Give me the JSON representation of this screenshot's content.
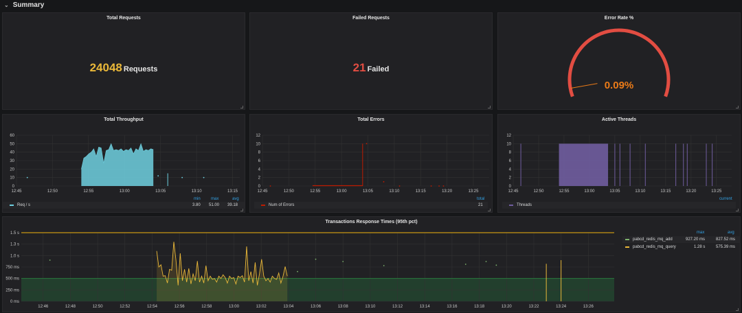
{
  "row": {
    "title": "Summary",
    "chevron_icon": "chevron-down-icon"
  },
  "total_requests": {
    "title": "Total Requests",
    "value": "24048",
    "unit": "Requests",
    "color": "#eab839"
  },
  "failed_requests": {
    "title": "Failed Requests",
    "value": "21",
    "unit": "Failed",
    "color": "#e24d42"
  },
  "error_rate": {
    "title": "Error Rate %",
    "value": "0.09%",
    "percent": 0.09,
    "color": "#eb7b18",
    "arc_color": "#e24d42"
  },
  "chart_data": [
    {
      "id": "throughput",
      "title": "Total Throughput",
      "type": "area",
      "color": "#6ed0e0",
      "xlim": [
        "12:45",
        "13:16"
      ],
      "ylim": [
        0,
        60
      ],
      "x_ticks": [
        "12:45",
        "12:50",
        "12:55",
        "13:00",
        "13:05",
        "13:10",
        "13:15"
      ],
      "y_ticks": [
        "0",
        "10",
        "20",
        "30",
        "40",
        "50",
        "60"
      ],
      "series": [
        {
          "name": "Req / s",
          "area": {
            "x_start": "12:54:00",
            "x_end": "13:04:00",
            "values": [
              20,
              33,
              35,
              38,
              40,
              44,
              35,
              46,
              45,
              27,
              42,
              43,
              50,
              42,
              43,
              42,
              44,
              41,
              43,
              42,
              45,
              38,
              44,
              42,
              50,
              41,
              43,
              42,
              44,
              43
            ]
          },
          "points": [
            [
              "12:46:30",
              10
            ],
            [
              "13:04:40",
              12
            ],
            [
              "13:08:00",
              10
            ],
            [
              "13:11:00",
              10
            ]
          ],
          "spikes": [
            [
              "13:06:00",
              15
            ]
          ]
        }
      ],
      "legend": {
        "headers": [
          "min",
          "max",
          "avg"
        ],
        "values": [
          "3.80",
          "51.00",
          "39.18"
        ]
      }
    },
    {
      "id": "errors",
      "title": "Total Errors",
      "type": "line",
      "color": "#bf1b00",
      "xlim": [
        "12:45",
        "13:28"
      ],
      "ylim": [
        0,
        12
      ],
      "x_ticks": [
        "12:45",
        "12:50",
        "12:55",
        "13:00",
        "13:05",
        "13:10",
        "13:15",
        "13:20",
        "13:25"
      ],
      "y_ticks": [
        "0",
        "2",
        "4",
        "6",
        "8",
        "10",
        "12"
      ],
      "series": [
        {
          "name": "Num of Errors",
          "baseline": [
            "12:54:30",
            "13:04:00"
          ],
          "spikes": [
            [
              "13:04:00",
              10
            ]
          ],
          "points": [
            [
              "12:46:30",
              0
            ],
            [
              "13:04:45",
              10
            ],
            [
              "13:08:00",
              1
            ],
            [
              "13:11:00",
              0
            ],
            [
              "13:17:00",
              0
            ],
            [
              "13:18:30",
              0
            ],
            [
              "13:19:20",
              0
            ]
          ]
        }
      ],
      "legend": {
        "headers": [
          "total"
        ],
        "values": [
          "21"
        ]
      }
    },
    {
      "id": "threads",
      "title": "Active Threads",
      "type": "area",
      "color": "#705da0",
      "xlim": [
        "12:45",
        "13:28"
      ],
      "ylim": [
        0,
        12
      ],
      "x_ticks": [
        "12:45",
        "12:50",
        "12:55",
        "13:00",
        "13:05",
        "13:10",
        "13:15",
        "13:20",
        "13:25"
      ],
      "y_ticks": [
        "0",
        "2",
        "4",
        "6",
        "8",
        "10",
        "12"
      ],
      "series": [
        {
          "name": "Threads",
          "block": [
            "12:54:00",
            "13:03:40",
            10
          ],
          "spikes": [
            [
              "12:46:30",
              10
            ],
            [
              "13:05:00",
              10
            ],
            [
              "13:06:00",
              10
            ],
            [
              "13:08:00",
              10
            ],
            [
              "13:11:00",
              10
            ],
            [
              "13:17:00",
              10
            ],
            [
              "13:18:30",
              10
            ],
            [
              "13:19:15",
              10
            ],
            [
              "13:23:00",
              10
            ],
            [
              "13:24:10",
              10
            ]
          ]
        }
      ],
      "legend": {
        "headers": [
          "current"
        ],
        "values": [
          ""
        ]
      }
    },
    {
      "id": "response",
      "title": "Transactions Response Times (95th pct)",
      "type": "line",
      "xlim": [
        "12:44:24",
        "13:27:54"
      ],
      "ylim": [
        0,
        1500
      ],
      "x_ticks": [
        "12:46",
        "12:48",
        "12:50",
        "12:52",
        "12:54",
        "12:56",
        "12:58",
        "13:00",
        "13:02",
        "13:04",
        "13:06",
        "13:08",
        "13:10",
        "13:12",
        "13:14",
        "13:16",
        "13:18",
        "13:20",
        "13:22",
        "13:24",
        "13:26"
      ],
      "y_ticks": [
        "0 ms",
        "250 ms",
        "500 ms",
        "750 ms",
        "1.0 s",
        "1.3 s",
        "1.5 s"
      ],
      "thresholds": [
        {
          "value": 500,
          "color": "#299c46",
          "fill": true
        },
        {
          "value": 1500,
          "color": "#e5ac0e",
          "fill": false
        }
      ],
      "series": [
        {
          "name": "pabcd_redis_mq_add",
          "color": "#7eb26d",
          "max": "927.20 ms",
          "avg": "827.52 ms",
          "points": [
            [
              "12:46:30",
              900
            ],
            [
              "13:04:40",
              650
            ],
            [
              "13:06:00",
              920
            ],
            [
              "13:08:00",
              870
            ],
            [
              "13:11:00",
              780
            ],
            [
              "13:17:00",
              810
            ],
            [
              "13:18:30",
              870
            ],
            [
              "13:19:15",
              790
            ]
          ]
        },
        {
          "name": "pabcd_redis_mq_query",
          "color": "#eab839",
          "max": "1.28 s",
          "avg": "575.39 ms",
          "line": {
            "x_start": "12:54:20",
            "x_end": "13:03:55",
            "values": [
              1100,
              750,
              800,
              550,
              560,
              400,
              700,
              680,
              1300,
              900,
              350,
              1050,
              450,
              700,
              420,
              720,
              380,
              600,
              450,
              880,
              420,
              550,
              400,
              780,
              450,
              550,
              480,
              500,
              420,
              550,
              500,
              580,
              520,
              400,
              550,
              500,
              520,
              380,
              550,
              520,
              560,
              420,
              1200,
              450,
              650,
              400,
              850,
              350,
              600,
              920,
              550,
              450,
              500,
              420,
              550,
              500,
              480,
              620,
              400,
              550,
              760,
              550
            ]
          },
          "spikes": [
            [
              "13:22:55",
              820
            ],
            [
              "13:24:00",
              900
            ]
          ]
        }
      ],
      "legend": {
        "headers": [
          "max",
          "avg"
        ]
      }
    }
  ]
}
